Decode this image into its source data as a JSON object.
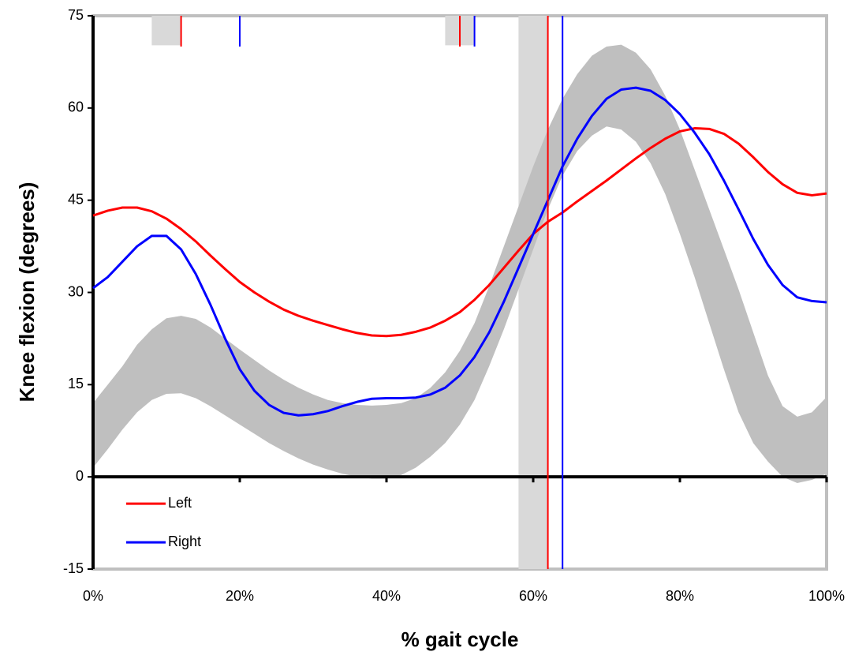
{
  "chart_data": {
    "type": "line",
    "xlabel": "% gait cycle",
    "ylabel": "Knee flexion (degrees)",
    "x": [
      0,
      2,
      4,
      6,
      8,
      10,
      12,
      14,
      16,
      18,
      20,
      22,
      24,
      26,
      28,
      30,
      32,
      34,
      36,
      38,
      40,
      42,
      44,
      46,
      48,
      50,
      52,
      54,
      56,
      58,
      60,
      62,
      64,
      66,
      68,
      70,
      72,
      74,
      76,
      78,
      80,
      82,
      84,
      86,
      88,
      90,
      92,
      94,
      96,
      98,
      100
    ],
    "series": [
      {
        "name": "Left",
        "color": "#ff0000",
        "values": [
          42.5,
          43.3,
          43.8,
          43.8,
          43.2,
          42,
          40.3,
          38.3,
          36,
          33.8,
          31.7,
          30,
          28.5,
          27.2,
          26.2,
          25.4,
          24.7,
          24,
          23.4,
          23,
          22.9,
          23.1,
          23.6,
          24.3,
          25.4,
          26.8,
          28.8,
          31.2,
          34,
          36.8,
          39.5,
          41.5,
          43,
          44.8,
          46.5,
          48.2,
          50,
          51.8,
          53.5,
          55,
          56.2,
          56.7,
          56.6,
          55.8,
          54.2,
          52,
          49.6,
          47.6,
          46.2,
          45.8,
          46.1
        ]
      },
      {
        "name": "Right",
        "color": "#0000ff",
        "values": [
          30.7,
          32.5,
          35,
          37.5,
          39.2,
          39.2,
          37,
          33,
          28,
          22.5,
          17.5,
          14,
          11.7,
          10.4,
          10,
          10.2,
          10.7,
          11.5,
          12.2,
          12.7,
          12.8,
          12.8,
          12.9,
          13.4,
          14.5,
          16.5,
          19.5,
          23.5,
          28.5,
          34,
          39.5,
          45,
          50.5,
          55,
          58.7,
          61.5,
          63,
          63.3,
          62.8,
          61.3,
          59,
          56,
          52.5,
          48.2,
          43.5,
          38.7,
          34.5,
          31.2,
          29.2,
          28.6,
          28.4
        ]
      }
    ],
    "band": {
      "color": "#bfbfbf",
      "upper": [
        12,
        15,
        18,
        21.5,
        24,
        25.8,
        26.2,
        25.7,
        24.3,
        22.5,
        20.7,
        19,
        17.3,
        15.8,
        14.5,
        13.4,
        12.5,
        12,
        11.7,
        11.6,
        11.7,
        12,
        12.8,
        14.5,
        17,
        20.5,
        25,
        31,
        37.5,
        44,
        50.5,
        56.5,
        61.5,
        65.5,
        68.5,
        70,
        70.3,
        69,
        66.3,
        62,
        56.5,
        50,
        43.5,
        37,
        30.5,
        23.5,
        16.5,
        11.5,
        9.8,
        10.5,
        13
      ],
      "lower": [
        1.5,
        4.5,
        7.7,
        10.5,
        12.5,
        13.5,
        13.6,
        12.8,
        11.5,
        10,
        8.5,
        7,
        5.5,
        4.2,
        3,
        2,
        1.2,
        0.5,
        0,
        -0.3,
        -0.3,
        0.3,
        1.5,
        3.3,
        5.5,
        8.5,
        12.5,
        18,
        24,
        30.5,
        37,
        43.5,
        49,
        53,
        55.5,
        57,
        56.5,
        54.5,
        51,
        46,
        39.5,
        32.5,
        25,
        17.5,
        10.5,
        5.5,
        2.5,
        0,
        -1,
        -0.5,
        0.5
      ]
    },
    "regions": [
      {
        "x": [
          8,
          12
        ],
        "y": [
          70.2,
          75
        ],
        "color": "#d9d9d9"
      },
      {
        "x": [
          48,
          52
        ],
        "y": [
          70.2,
          75
        ],
        "color": "#d9d9d9"
      },
      {
        "x": [
          58,
          62
        ],
        "y": [
          -15,
          75
        ],
        "color": "#d9d9d9"
      }
    ],
    "events": [
      {
        "x": 12,
        "y": [
          70,
          75
        ],
        "color": "#ff0000"
      },
      {
        "x": 20,
        "y": [
          70,
          75
        ],
        "color": "#0000ff"
      },
      {
        "x": 50,
        "y": [
          70,
          75
        ],
        "color": "#ff0000"
      },
      {
        "x": 52,
        "y": [
          70,
          75
        ],
        "color": "#0000ff"
      },
      {
        "x": 62,
        "y": [
          -15,
          75
        ],
        "color": "#ff0000"
      },
      {
        "x": 64,
        "y": [
          -15,
          75
        ],
        "color": "#0000ff"
      }
    ],
    "xlim": [
      0,
      100
    ],
    "ylim": [
      -15,
      75
    ],
    "xticks": [
      {
        "value": 0,
        "label": "0%"
      },
      {
        "value": 20,
        "label": "20%"
      },
      {
        "value": 40,
        "label": "40%"
      },
      {
        "value": 60,
        "label": "60%"
      },
      {
        "value": 80,
        "label": "80%"
      },
      {
        "value": 100,
        "label": "100%"
      }
    ],
    "yticks": [
      -15,
      0,
      15,
      30,
      45,
      60,
      75
    ],
    "legend": "lower left"
  }
}
